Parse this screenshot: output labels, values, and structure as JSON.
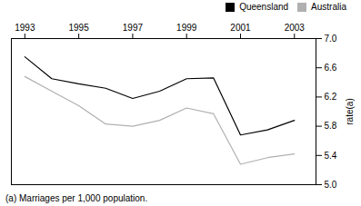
{
  "chart_data": {
    "type": "line",
    "x": [
      1993,
      1994,
      1995,
      1996,
      1997,
      1998,
      1999,
      2000,
      2001,
      2002,
      2003
    ],
    "series": [
      {
        "name": "Queensland",
        "color": "#000000",
        "values": [
          6.75,
          6.45,
          6.38,
          6.32,
          6.18,
          6.28,
          6.45,
          6.46,
          5.68,
          5.75,
          5.88
        ]
      },
      {
        "name": "Australia",
        "color": "#b0b0b0",
        "values": [
          6.48,
          6.28,
          6.08,
          5.83,
          5.8,
          5.88,
          6.05,
          5.97,
          5.28,
          5.37,
          5.42
        ]
      }
    ],
    "xlim": [
      1992.5,
      2003.8
    ],
    "xticks": [
      1993,
      1995,
      1997,
      1999,
      2001,
      2003
    ],
    "ylim": [
      5.0,
      7.0
    ],
    "yticks": [
      {
        "value": 5.0,
        "label": "5.0"
      },
      5.4,
      5.8,
      6.2,
      6.6,
      {
        "value": 7.0,
        "label": "7.0"
      }
    ],
    "ylabel": "rate(a)",
    "caption": "(a) Marriages per 1,000 population.",
    "legend": "upper right",
    "grid": false
  }
}
